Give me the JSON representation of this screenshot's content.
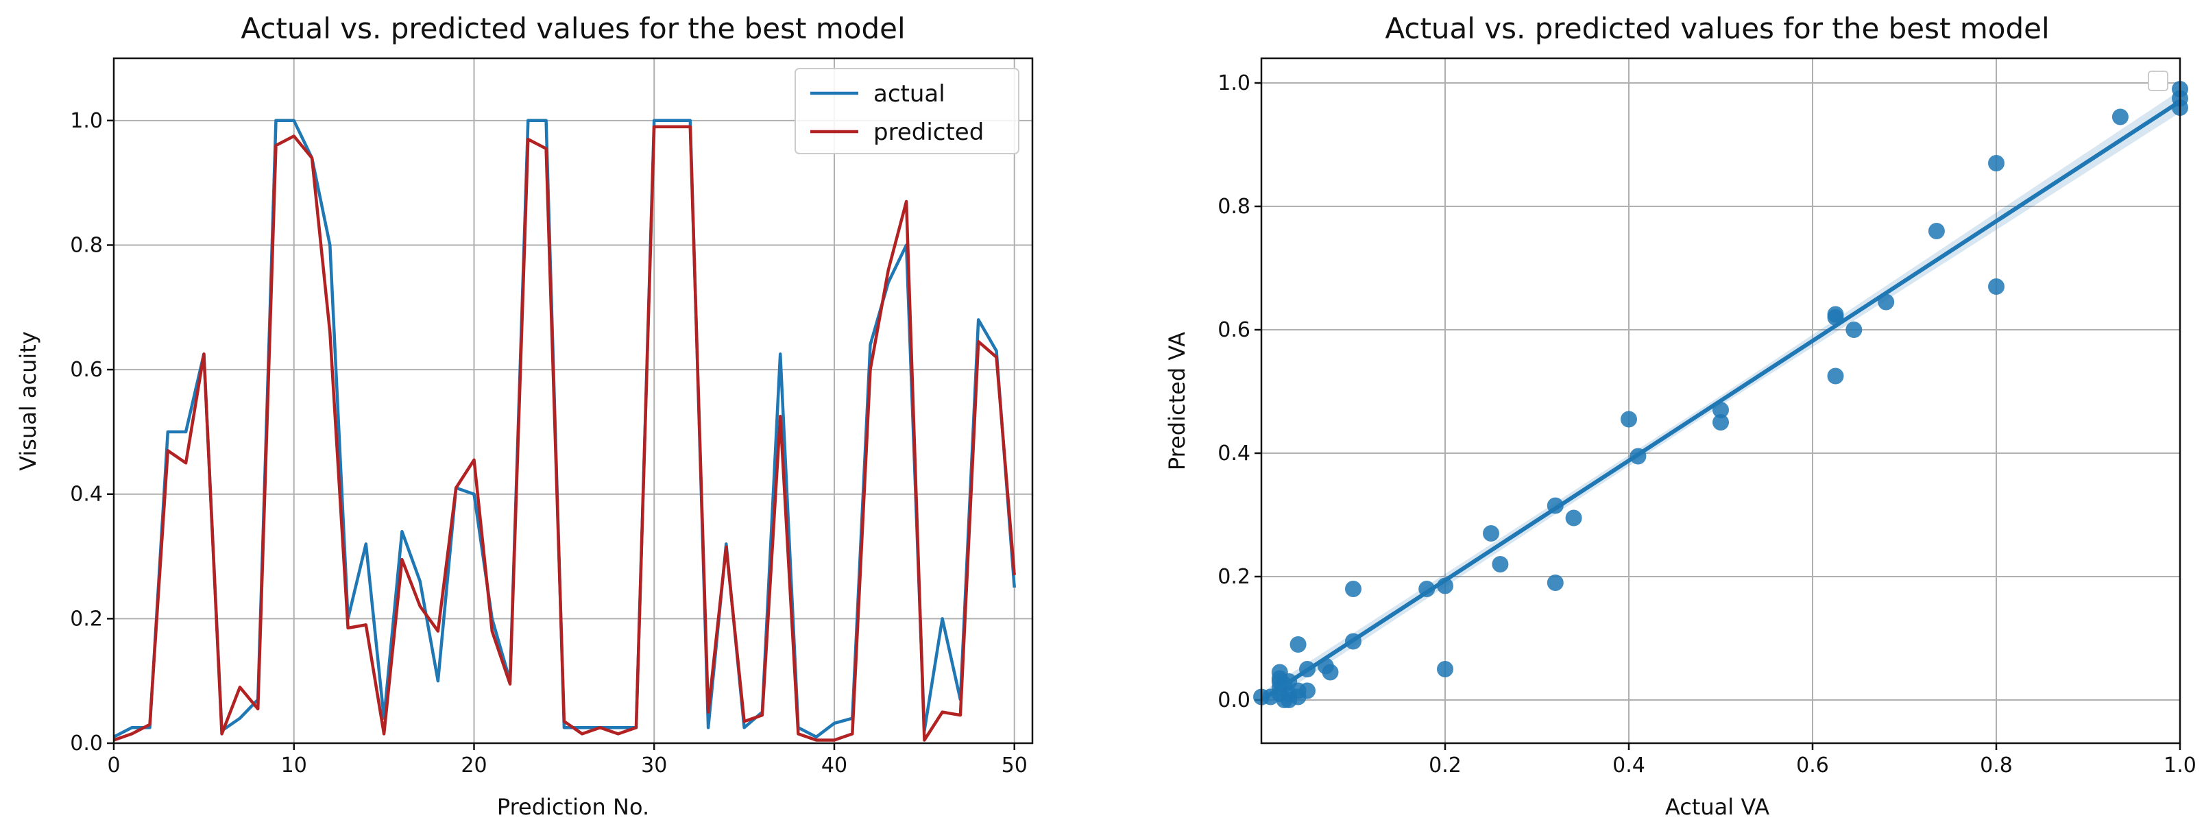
{
  "chart_data": [
    {
      "type": "line",
      "title": "Actual vs. predicted values for the best model",
      "xlabel": "Prediction No.",
      "ylabel": "Visual acuity",
      "xlim": [
        0,
        51
      ],
      "ylim": [
        0,
        1.1
      ],
      "xticks": [
        0,
        10,
        20,
        30,
        40,
        50
      ],
      "yticks": [
        0.0,
        0.2,
        0.4,
        0.6,
        0.8,
        1.0
      ],
      "xtick_labels": [
        "0",
        "10",
        "20",
        "30",
        "40",
        "50"
      ],
      "ytick_labels": [
        "0.0",
        "0.2",
        "0.4",
        "0.6",
        "0.8",
        "1.0"
      ],
      "grid": true,
      "legend": "top-right",
      "x": [
        0,
        1,
        2,
        3,
        4,
        5,
        6,
        7,
        8,
        9,
        10,
        11,
        12,
        13,
        14,
        15,
        16,
        17,
        18,
        19,
        20,
        21,
        22,
        23,
        24,
        25,
        26,
        27,
        28,
        29,
        30,
        31,
        32,
        33,
        34,
        35,
        36,
        37,
        38,
        39,
        40,
        41,
        42,
        43,
        44,
        45,
        46,
        47,
        48,
        49,
        50
      ],
      "series": [
        {
          "name": "actual",
          "color": "#1f77b4",
          "values": [
            0.01,
            0.025,
            0.025,
            0.5,
            0.5,
            0.625,
            0.02,
            0.04,
            0.07,
            1.0,
            1.0,
            0.94,
            0.8,
            0.2,
            0.32,
            0.04,
            0.34,
            0.26,
            0.1,
            0.41,
            0.4,
            0.2,
            0.1,
            1.0,
            1.0,
            0.025,
            0.025,
            0.025,
            0.025,
            0.025,
            1.0,
            1.0,
            1.0,
            0.025,
            0.32,
            0.025,
            0.05,
            0.625,
            0.025,
            0.01,
            0.032,
            0.04,
            0.64,
            0.74,
            0.8,
            0.02,
            0.2,
            0.07,
            0.68,
            0.63,
            0.25
          ]
        },
        {
          "name": "predicted",
          "color": "#b22222",
          "values": [
            0.005,
            0.015,
            0.03,
            0.47,
            0.45,
            0.625,
            0.015,
            0.09,
            0.055,
            0.96,
            0.975,
            0.94,
            0.66,
            0.185,
            0.19,
            0.015,
            0.295,
            0.22,
            0.18,
            0.41,
            0.455,
            0.18,
            0.095,
            0.97,
            0.955,
            0.035,
            0.015,
            0.025,
            0.015,
            0.025,
            0.99,
            0.99,
            0.99,
            0.05,
            0.315,
            0.035,
            0.045,
            0.525,
            0.015,
            0.005,
            0.005,
            0.015,
            0.6,
            0.76,
            0.87,
            0.005,
            0.05,
            0.045,
            0.645,
            0.62,
            0.27
          ]
        }
      ]
    },
    {
      "type": "scatter",
      "title": "Actual vs. predicted values for the best model",
      "xlabel": "Actual VA",
      "ylabel": "Predicted VA",
      "xlim": [
        0,
        1.0
      ],
      "ylim": [
        -0.07,
        1.04
      ],
      "xticks": [
        0.2,
        0.4,
        0.6,
        0.8,
        1.0
      ],
      "yticks": [
        0.0,
        0.2,
        0.4,
        0.6,
        0.8,
        1.0
      ],
      "xtick_labels": [
        "0.2",
        "0.4",
        "0.6",
        "0.8",
        "1.0"
      ],
      "ytick_labels": [
        "0.0",
        "0.2",
        "0.4",
        "0.6",
        "0.8",
        "1.0"
      ],
      "grid": true,
      "legend": "top-right (empty)",
      "color": "#1f77b4",
      "regression": {
        "slope": 0.97,
        "intercept": 0.0
      },
      "points": [
        [
          0.0,
          0.005
        ],
        [
          0.01,
          0.005
        ],
        [
          0.02,
          0.01
        ],
        [
          0.02,
          0.02
        ],
        [
          0.02,
          0.03
        ],
        [
          0.02,
          0.035
        ],
        [
          0.02,
          0.045
        ],
        [
          0.025,
          0.0
        ],
        [
          0.025,
          0.025
        ],
        [
          0.03,
          0.01
        ],
        [
          0.03,
          0.03
        ],
        [
          0.03,
          0.0
        ],
        [
          0.04,
          0.005
        ],
        [
          0.04,
          0.015
        ],
        [
          0.04,
          0.09
        ],
        [
          0.05,
          0.05
        ],
        [
          0.05,
          0.015
        ],
        [
          0.07,
          0.055
        ],
        [
          0.075,
          0.045
        ],
        [
          0.1,
          0.095
        ],
        [
          0.1,
          0.18
        ],
        [
          0.18,
          0.18
        ],
        [
          0.2,
          0.185
        ],
        [
          0.2,
          0.05
        ],
        [
          0.25,
          0.27
        ],
        [
          0.26,
          0.22
        ],
        [
          0.32,
          0.315
        ],
        [
          0.32,
          0.19
        ],
        [
          0.34,
          0.295
        ],
        [
          0.4,
          0.455
        ],
        [
          0.41,
          0.395
        ],
        [
          0.5,
          0.47
        ],
        [
          0.5,
          0.45
        ],
        [
          0.625,
          0.625
        ],
        [
          0.625,
          0.62
        ],
        [
          0.625,
          0.525
        ],
        [
          0.645,
          0.6
        ],
        [
          0.68,
          0.645
        ],
        [
          0.735,
          0.76
        ],
        [
          0.8,
          0.87
        ],
        [
          0.8,
          0.67
        ],
        [
          0.935,
          0.945
        ],
        [
          1.0,
          0.99
        ],
        [
          1.0,
          0.975
        ],
        [
          1.0,
          0.96
        ]
      ]
    }
  ]
}
